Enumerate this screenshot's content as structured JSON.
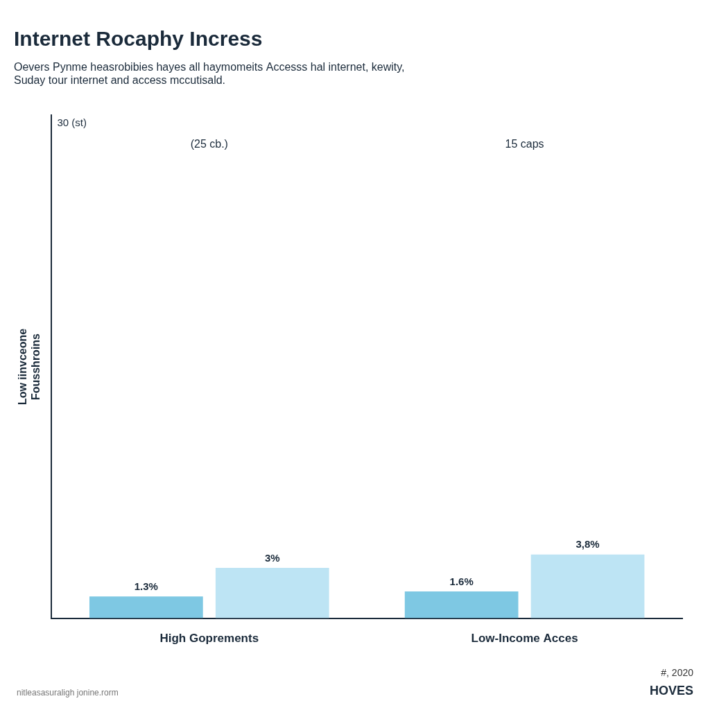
{
  "chart_data": {
    "type": "bar",
    "title": "Internet Rocaphy Incress",
    "subtitle": "Oevers Pynme heasrobibies hayes all haymomeits Accesss hal internet, kewity,\nSuday tour internet and access mccutisald.",
    "ylabel": "Low iinvceone\nFousshroins",
    "categories": [
      "High Goprements",
      "Low-Income Acces"
    ],
    "series": [
      {
        "color": "#7EC8E3",
        "values": [
          1.3,
          1.6
        ],
        "value_labels": [
          "1.3%",
          "1.6%"
        ]
      },
      {
        "color": "#BDE4F4",
        "values": [
          3.0,
          3.8
        ],
        "value_labels": [
          "3%",
          "3,8%"
        ]
      }
    ],
    "ylim": [
      0,
      30
    ],
    "tick_labels": "x",
    "grid": false,
    "data_labels": true,
    "annotations": [
      "30 (st)",
      "(25 cb.)",
      "15 caps",
      "nitleasasuraligh jonine.rorm",
      "#, 2020",
      "HOVES"
    ]
  }
}
